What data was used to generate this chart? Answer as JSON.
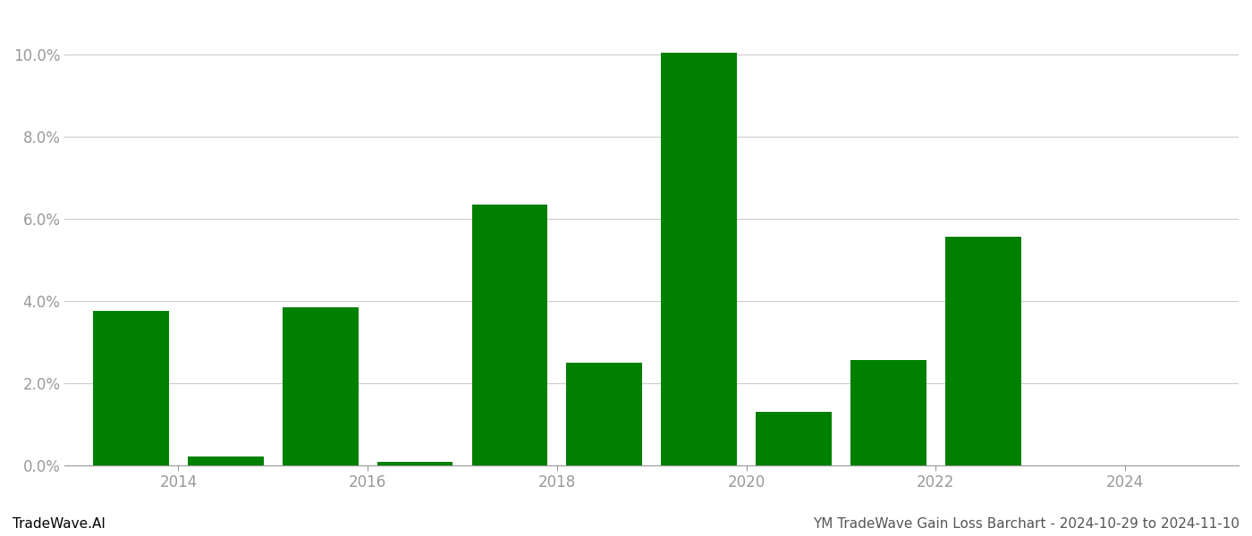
{
  "x_positions": [
    2013.5,
    2014.5,
    2015.5,
    2016.5,
    2017.5,
    2018.5,
    2019.5,
    2020.5,
    2021.5,
    2022.5,
    2023.5
  ],
  "values": [
    0.0375,
    0.002,
    0.0385,
    0.0007,
    0.0635,
    0.025,
    0.1005,
    0.013,
    0.0255,
    0.0555,
    0.0
  ],
  "bar_color": "#008000",
  "background_color": "#ffffff",
  "ylim": [
    0,
    0.11
  ],
  "xlim": [
    2012.8,
    2025.2
  ],
  "ytick_values": [
    0.0,
    0.02,
    0.04,
    0.06,
    0.08,
    0.1
  ],
  "ytick_labels": [
    "0.0%",
    "2.0%",
    "4.0%",
    "6.0%",
    "8.0%",
    "10.0%"
  ],
  "xtick_values": [
    2014,
    2016,
    2018,
    2020,
    2022,
    2024
  ],
  "footer_left": "TradeWave.AI",
  "footer_right": "YM TradeWave Gain Loss Barchart - 2024-10-29 to 2024-11-10",
  "bar_width": 0.8,
  "grid_color": "#cccccc",
  "tick_color": "#999999",
  "text_color": "#555555",
  "footer_fontsize": 11,
  "axis_fontsize": 12
}
